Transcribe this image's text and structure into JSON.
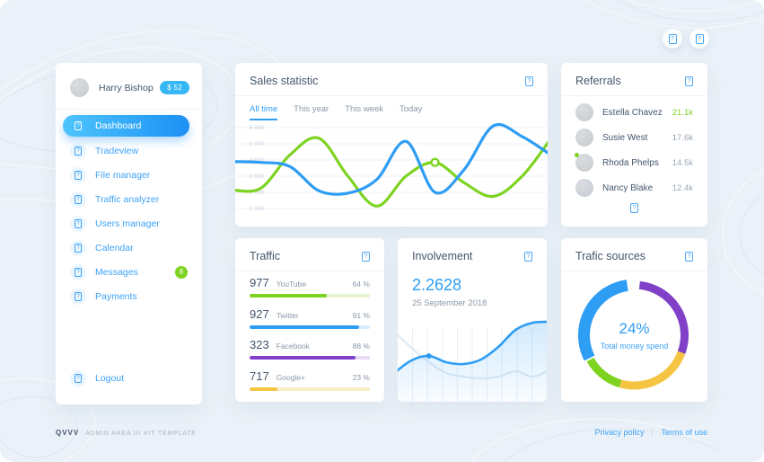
{
  "topbar": {
    "icons": [
      "notifications-icon",
      "settings-icon"
    ]
  },
  "sidebar": {
    "user": {
      "name": "Harry Bishop",
      "balance": "$ 52"
    },
    "items": [
      {
        "label": "Dashboard",
        "active": true
      },
      {
        "label": "Tradeview"
      },
      {
        "label": "File manager"
      },
      {
        "label": "Traffic analyzer"
      },
      {
        "label": "Users manager"
      },
      {
        "label": "Calendar"
      },
      {
        "label": "Messages",
        "badge": "8"
      },
      {
        "label": "Payments"
      }
    ],
    "logout": "Logout"
  },
  "sales": {
    "title": "Sales statistic",
    "tabs": [
      "All time",
      "This year",
      "This week",
      "Today"
    ],
    "active_tab": "All time"
  },
  "referrals": {
    "title": "Referrals",
    "items": [
      {
        "name": "Estella Chavez",
        "value": "21.1k",
        "highlight": true
      },
      {
        "name": "Susie West",
        "value": "17.6k"
      },
      {
        "name": "Rhoda Phelps",
        "value": "14.5k",
        "online": true
      },
      {
        "name": "Nancy Blake",
        "value": "12.4k"
      }
    ]
  },
  "traffic": {
    "title": "Traffic",
    "items": [
      {
        "count": "977",
        "label": "YouTube",
        "percent": 64,
        "percent_label": "64 %",
        "color": "#7ed321",
        "track": "#e6f4cf"
      },
      {
        "count": "927",
        "label": "Twitter",
        "percent": 91,
        "percent_label": "91 %",
        "color": "#2e9df4",
        "track": "#d6ecfd"
      },
      {
        "count": "323",
        "label": "Facebook",
        "percent": 88,
        "percent_label": "88 %",
        "color": "#8040c8",
        "track": "#e7daf6"
      },
      {
        "count": "717",
        "label": "Google+",
        "percent": 23,
        "percent_label": "23 %",
        "color": "#f6c443",
        "track": "#fceec2"
      }
    ]
  },
  "involvement": {
    "title": "Involvement",
    "value": "2.2628",
    "date": "25 September 2018"
  },
  "sources": {
    "title": "Trafic sources",
    "center_value": "24%",
    "center_label": "Total money spend"
  },
  "footer": {
    "brand": "QVVV",
    "brand_sub": "ADMIN AREA UI KIT TEMPLATE",
    "links": [
      "Privacy policy",
      "Terms of use"
    ]
  },
  "chart_data": [
    {
      "id": "sales",
      "type": "line",
      "title": "Sales statistic",
      "y_ticks": [
        "6 000",
        "5 000",
        "4 000",
        "3 000",
        "2 000",
        "1 000"
      ],
      "y_range": [
        1000,
        6000
      ],
      "grid": true,
      "series": [
        {
          "name": "green-series",
          "color": "#7ed321",
          "values": [
            2150,
            2250,
            4300,
            5350,
            3000,
            1150,
            3000,
            3850,
            2600,
            1750,
            3000,
            5350
          ],
          "marker_index": 7
        },
        {
          "name": "blue-series",
          "color": "#2e9df4",
          "values": [
            3900,
            3850,
            3600,
            2100,
            1950,
            2800,
            5150,
            2000,
            3400,
            6100,
            5450,
            4300
          ]
        }
      ]
    },
    {
      "id": "involvement",
      "type": "area",
      "title": "Involvement",
      "value_label": "2.2628",
      "date_label": "25 September 2018",
      "color": "#2e9df4",
      "y_range": [
        0,
        100
      ],
      "values": [
        28,
        42,
        47,
        40,
        38,
        43,
        57,
        76,
        84,
        85
      ],
      "marker_index": 2,
      "secondary": [
        74,
        56,
        40,
        28,
        24,
        22,
        24,
        30,
        24,
        32
      ]
    },
    {
      "id": "sources",
      "type": "pie",
      "title": "Trafic sources",
      "center_value": "24%",
      "center_label": "Total money spend",
      "segments": [
        {
          "name": "purple",
          "color": "#8040c8",
          "from": 6,
          "to": 110,
          "width": 9
        },
        {
          "name": "yellow",
          "color": "#f6c443",
          "from": 110,
          "to": 196,
          "width": 9
        },
        {
          "name": "green",
          "color": "#7ed321",
          "from": 196,
          "to": 241,
          "width": 9
        },
        {
          "name": "blue",
          "color": "#2e9df4",
          "from": 243,
          "to": 352,
          "width": 13
        }
      ]
    },
    {
      "id": "traffic",
      "type": "bar",
      "title": "Traffic",
      "categories": [
        "YouTube",
        "Twitter",
        "Facebook",
        "Google+"
      ],
      "counts": [
        977,
        927,
        323,
        717
      ],
      "values": [
        64,
        91,
        88,
        23
      ],
      "ylabel": "percent"
    }
  ]
}
